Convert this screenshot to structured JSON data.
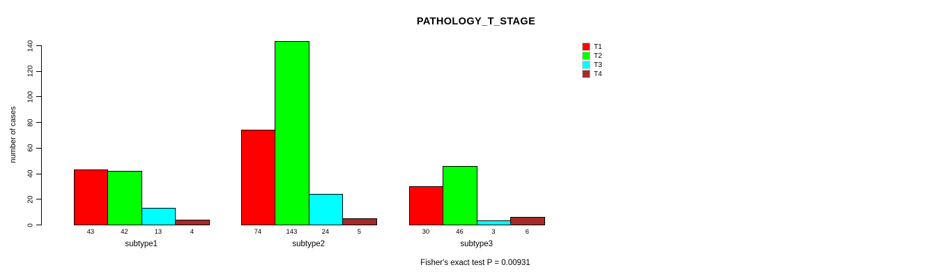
{
  "chart_data": {
    "type": "bar",
    "title": "PATHOLOGY_T_STAGE",
    "categories": [
      "subtype1",
      "subtype2",
      "subtype3"
    ],
    "series": [
      {
        "name": "T1",
        "color": "#ff0000",
        "values": [
          43,
          74,
          30
        ]
      },
      {
        "name": "T2",
        "color": "#00ff00",
        "values": [
          42,
          143,
          46
        ]
      },
      {
        "name": "T3",
        "color": "#00ffff",
        "values": [
          13,
          24,
          3
        ]
      },
      {
        "name": "T4",
        "color": "#a52a2a",
        "values": [
          4,
          5,
          6
        ]
      }
    ],
    "xlabel": "",
    "ylabel": "number of cases",
    "ylim": [
      0,
      140
    ],
    "yticks": [
      0,
      20,
      40,
      60,
      80,
      100,
      120,
      140
    ],
    "grid": false,
    "show_value_labels": true,
    "legend_position": "topright",
    "annotation": "Fisher's exact test P = 0.00931"
  }
}
